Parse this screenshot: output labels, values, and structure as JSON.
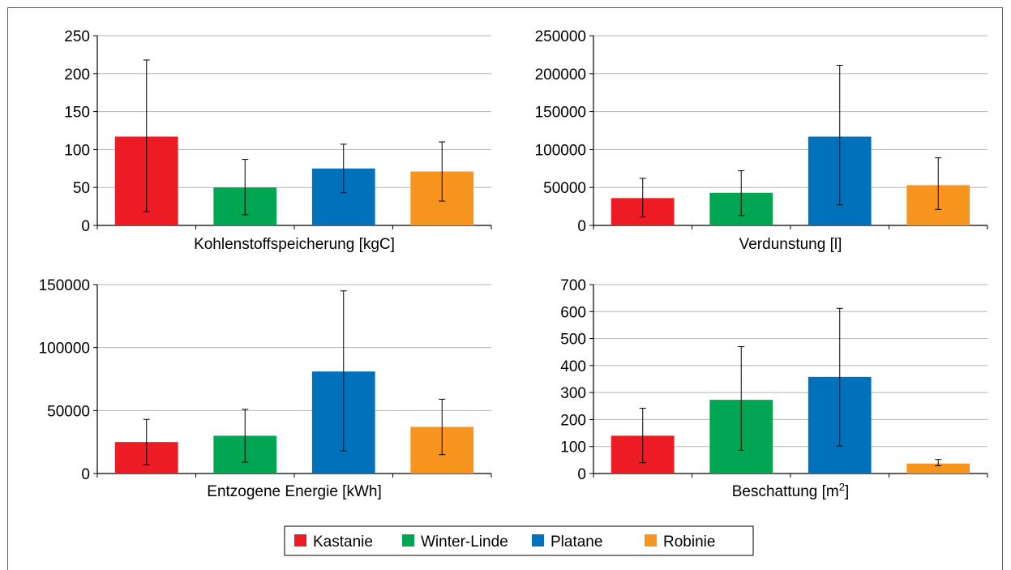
{
  "legend": [
    {
      "name": "Kastanie",
      "color": "#ed1c24"
    },
    {
      "name": "Winter-Linde",
      "color": "#00a651"
    },
    {
      "name": "Platane",
      "color": "#0072bc"
    },
    {
      "name": "Robinie",
      "color": "#f7941d"
    }
  ],
  "chart_data": [
    {
      "type": "bar",
      "xlabel": "Kohlenstoffspeicherung [kgC]",
      "xlabel_suffix": "",
      "categories": [
        "Kastanie",
        "Winter-Linde",
        "Platane",
        "Robinie"
      ],
      "values": [
        117,
        50,
        75,
        71
      ],
      "error_low": [
        18,
        14,
        43,
        32
      ],
      "error_high": [
        218,
        87,
        107,
        110
      ],
      "ylim": [
        0,
        250
      ],
      "yticks": [
        0,
        50,
        100,
        150,
        200,
        250
      ],
      "grid": true,
      "legend": "bottom"
    },
    {
      "type": "bar",
      "xlabel": "Verdunstung [l]",
      "xlabel_suffix": "",
      "categories": [
        "Kastanie",
        "Winter-Linde",
        "Platane",
        "Robinie"
      ],
      "values": [
        36000,
        43000,
        117000,
        53000
      ],
      "error_low": [
        11000,
        13000,
        27000,
        21000
      ],
      "error_high": [
        62000,
        72000,
        211000,
        89000
      ],
      "ylim": [
        0,
        250000
      ],
      "yticks": [
        0,
        50000,
        100000,
        150000,
        200000,
        250000
      ],
      "grid": true,
      "legend": "bottom"
    },
    {
      "type": "bar",
      "xlabel": "Entzogene Energie [kWh]",
      "xlabel_suffix": "",
      "categories": [
        "Kastanie",
        "Winter-Linde",
        "Platane",
        "Robinie"
      ],
      "values": [
        25000,
        30000,
        81000,
        37000
      ],
      "error_low": [
        7000,
        9000,
        18000,
        15000
      ],
      "error_high": [
        43000,
        51000,
        145000,
        59000
      ],
      "ylim": [
        0,
        150000
      ],
      "yticks": [
        0,
        50000,
        100000,
        150000
      ],
      "grid": true,
      "legend": "bottom"
    },
    {
      "type": "bar",
      "xlabel": "Beschattung [m",
      "xlabel_sup": "2",
      "xlabel_suffix": "]",
      "categories": [
        "Kastanie",
        "Winter-Linde",
        "Platane",
        "Robinie"
      ],
      "values": [
        140,
        273,
        358,
        37
      ],
      "error_low": [
        40,
        86,
        102,
        29
      ],
      "error_high": [
        242,
        470,
        612,
        52
      ],
      "ylim": [
        0,
        700
      ],
      "yticks": [
        0,
        100,
        200,
        300,
        400,
        500,
        600,
        700
      ],
      "grid": true,
      "legend": "bottom"
    }
  ]
}
